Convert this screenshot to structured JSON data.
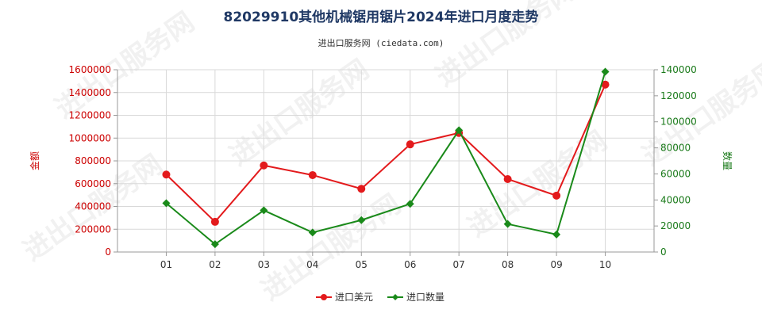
{
  "chart_data": {
    "type": "line",
    "title": "82029910其他机械锯用锯片2024年进口月度走势",
    "subtitle": "进出口服务网 (ciedata.com)",
    "categories": [
      "01",
      "02",
      "03",
      "04",
      "05",
      "06",
      "07",
      "08",
      "09",
      "10"
    ],
    "y_left": {
      "label": "金额",
      "ylim": [
        0,
        1600000
      ],
      "ticks": [
        0,
        200000,
        400000,
        600000,
        800000,
        1000000,
        1200000,
        1400000,
        1600000
      ]
    },
    "y_right": {
      "label": "数量",
      "ylim": [
        0,
        140000
      ],
      "ticks": [
        0,
        20000,
        40000,
        60000,
        80000,
        100000,
        120000,
        140000
      ]
    },
    "series": [
      {
        "name": "进口美元",
        "axis": "left",
        "color": "#e31a1c",
        "values": [
          680000,
          265000,
          760000,
          675000,
          555000,
          945000,
          1045000,
          640000,
          495000,
          1470000
        ]
      },
      {
        "name": "进口数量",
        "axis": "right",
        "color": "#1a8a1a",
        "values": [
          37500,
          6000,
          32000,
          15000,
          24500,
          37000,
          93500,
          21500,
          13500,
          138500
        ]
      }
    ],
    "grid": true,
    "legend_position": "bottom-center",
    "watermark": "进出口服务网"
  }
}
